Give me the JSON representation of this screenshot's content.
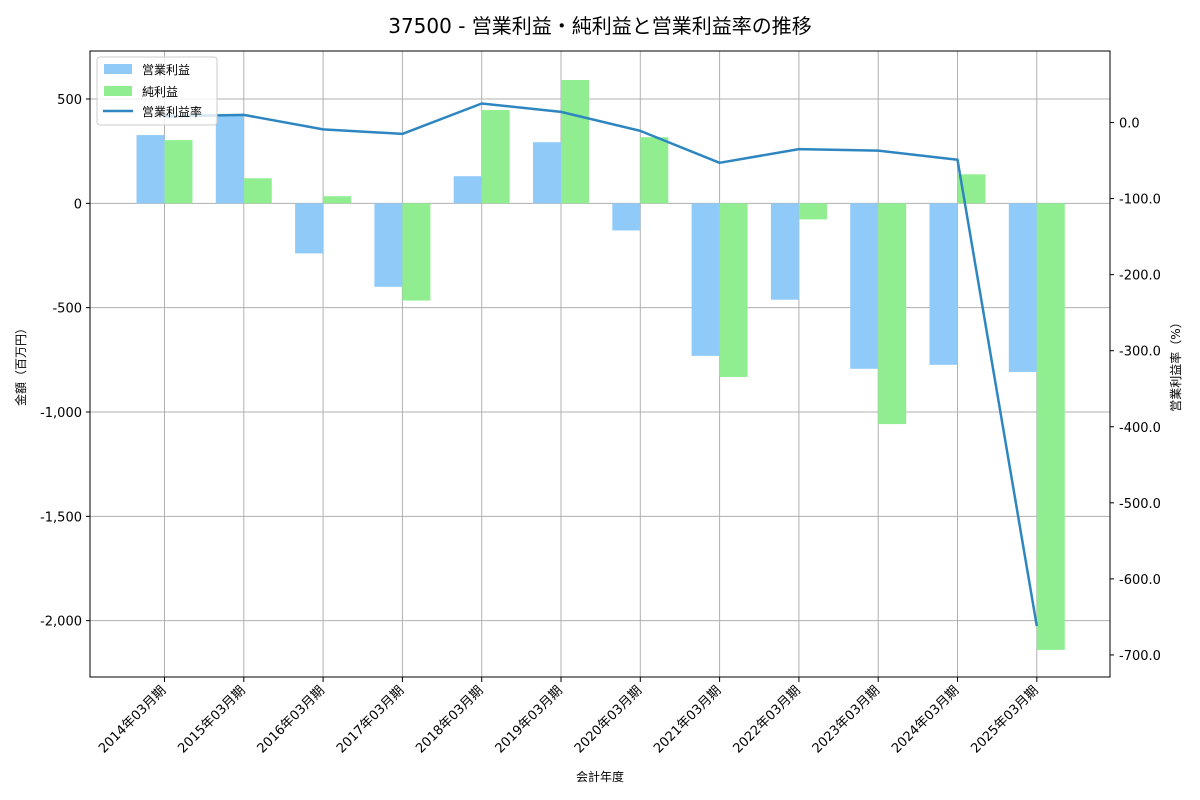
{
  "chart_data": {
    "type": "bar+line",
    "title": "37500 - 営業利益・純利益と営業利益率の推移",
    "xlabel": "会計年度",
    "ylabel": "金額（百万円）",
    "ylabel_right": "営業利益率（%）",
    "categories": [
      "2014年03月期",
      "2015年03月期",
      "2016年03月期",
      "2017年03月期",
      "2018年03月期",
      "2019年03月期",
      "2020年03月期",
      "2021年03月期",
      "2022年03月期",
      "2023年03月期",
      "2024年03月期",
      "2025年03月期"
    ],
    "series": [
      {
        "name": "営業利益",
        "type": "bar",
        "axis": "left",
        "color": "#90caf9",
        "values": [
          327,
          425,
          -240,
          -400,
          130,
          293,
          -130,
          -731,
          -462,
          -793,
          -774,
          -808
        ]
      },
      {
        "name": "純利益",
        "type": "bar",
        "axis": "left",
        "color": "#90ee90",
        "values": [
          303,
          120,
          34,
          -466,
          447,
          591,
          317,
          -832,
          -77,
          -1058,
          139,
          -2140
        ]
      },
      {
        "name": "営業利益率",
        "type": "line",
        "axis": "right",
        "color": "#2e86c1",
        "values": [
          8,
          10,
          -9,
          -15,
          25,
          14,
          -11,
          -53,
          -35,
          -37,
          -49,
          -662
        ]
      }
    ],
    "ylim": [
      -2270,
      730
    ],
    "ylim_right": [
      -729,
      94
    ],
    "yticks": [
      500,
      0,
      -500,
      -1000,
      -1500,
      -2000
    ],
    "ytick_labels": [
      "500",
      "0",
      "-500",
      "-1,000",
      "-1,500",
      "-2,000"
    ],
    "yticks_right": [
      0,
      -100,
      -200,
      -300,
      -400,
      -500,
      -600,
      -700
    ],
    "ytick_labels_right": [
      "0.0",
      "-100.0",
      "-200.0",
      "-300.0",
      "-400.0",
      "-500.0",
      "-600.0",
      "-700.0"
    ],
    "grid": true,
    "legend_position": "upper left"
  }
}
